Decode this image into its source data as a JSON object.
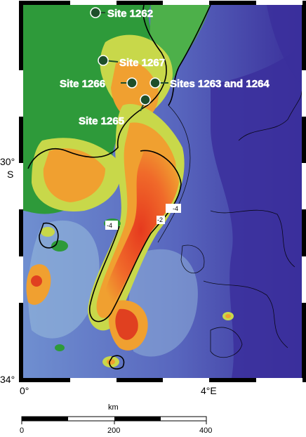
{
  "map": {
    "sites": [
      {
        "name": "Site 1262"
      },
      {
        "name": "Site 1267"
      },
      {
        "name": "Site 1266"
      },
      {
        "name": "Sites 1263 and 1264"
      },
      {
        "name": "Site 1265"
      }
    ],
    "latitude_labels": {
      "lat30": "30°",
      "lat30_hemisphere": "S",
      "lat34": "34°"
    },
    "longitude_labels": {
      "lon0": "0°",
      "lon4": "4°E"
    },
    "contour_labels": [
      "-4",
      "-2",
      "-4"
    ],
    "scale_bar": {
      "unit": "km",
      "ticks": [
        "0",
        "200",
        "400"
      ]
    },
    "colors": {
      "deep": "#3a2f9a",
      "abyssal": "#5a63c0",
      "plain": "#8fb0d8",
      "slope": "#2e9a3a",
      "shoulder": "#c8d84a",
      "mid": "#f0a030",
      "crest": "#e04020",
      "marker": "#1f4f2a"
    }
  }
}
